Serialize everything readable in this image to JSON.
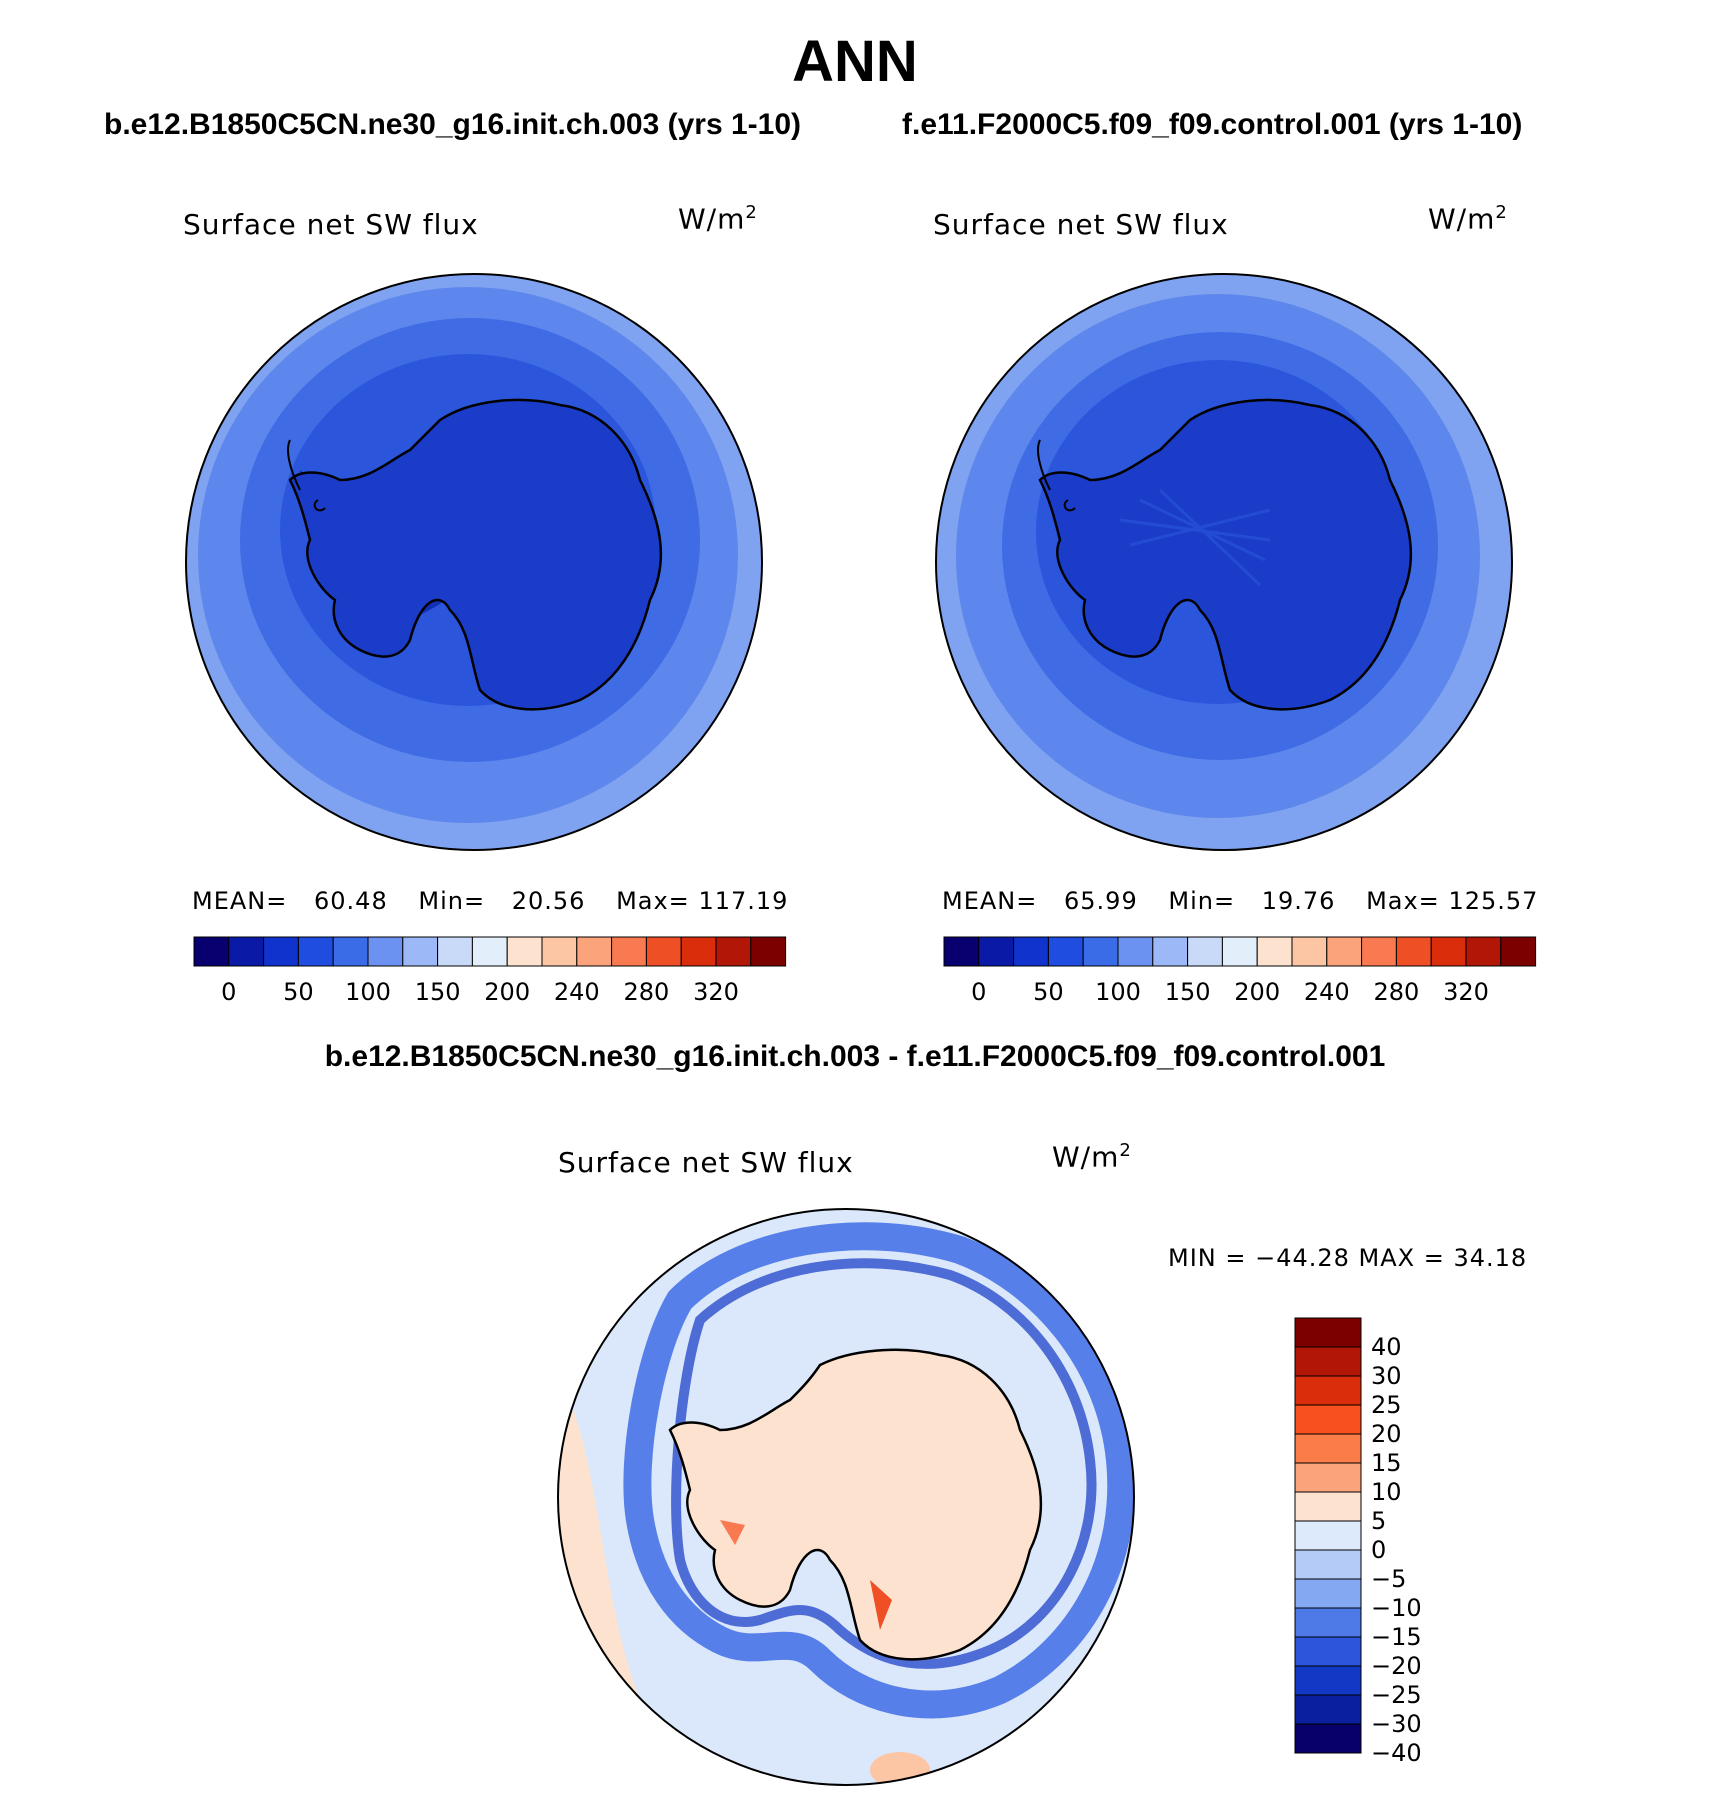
{
  "figure": {
    "title": "ANN",
    "case_left_title": "b.e12.B1850C5CN.ne30_g16.init.ch.003 (yrs 1-10)",
    "case_right_title": "f.e11.F2000C5.f09_f09.control.001 (yrs 1-10)",
    "diff_title": "b.e12.B1850C5CN.ne30_g16.init.ch.003 - f.e11.F2000C5.f09_f09.control.001"
  },
  "panels": [
    {
      "variable": "Surface net SW flux",
      "units_base": "W/m",
      "units_exp": "2",
      "mean_label": "MEAN=",
      "mean": "60.48",
      "min_label": "Min=",
      "min": "20.56",
      "max_label": "Max=",
      "max": "117.19"
    },
    {
      "variable": "Surface net SW flux",
      "units_base": "W/m",
      "units_exp": "2",
      "mean_label": "MEAN=",
      "mean": "65.99",
      "min_label": "Min=",
      "min": "19.76",
      "max_label": "Max=",
      "max": "125.57"
    }
  ],
  "diff_panel": {
    "variable": "Surface net SW flux",
    "units_base": "W/m",
    "units_exp": "2",
    "minmax_text": "MIN = −44.28 MAX =   34.18"
  },
  "colorbar_abs": {
    "colors": [
      "#08006e",
      "#0a1aa6",
      "#0f33cc",
      "#1f4de0",
      "#3a6ce8",
      "#6b92f0",
      "#9cb8f6",
      "#c8daf8",
      "#e2eefa",
      "#fde3cf",
      "#fcc5a4",
      "#fba47c",
      "#f97a50",
      "#ef4f25",
      "#d92d0b",
      "#b21606",
      "#7d0000"
    ],
    "labels": [
      "0",
      "50",
      "100",
      "150",
      "200",
      "240",
      "280",
      "320"
    ]
  },
  "colorbar_diff": {
    "colors": [
      "#7d0000",
      "#b21606",
      "#d92d0b",
      "#f9501f",
      "#fa7c48",
      "#fba47c",
      "#fde3cf",
      "#dceafb",
      "#b4cbf8",
      "#85a8f2",
      "#4d7ae6",
      "#2b56dc",
      "#1338c4",
      "#0a1f9e",
      "#07006b"
    ],
    "labels": [
      "40",
      "30",
      "25",
      "20",
      "15",
      "10",
      "5",
      "0",
      "−5",
      "−10",
      "−15",
      "−20",
      "−25",
      "−30",
      "−40"
    ]
  },
  "map_colors": {
    "outer_ring": "#7fa3f1",
    "ring2": "#5d87ec",
    "ring3": "#3f6ce5",
    "inner": "#2b56dc",
    "antarctica": "#1a3cc8",
    "deep": "#122fb5",
    "diff_bg": "#dbe8fb",
    "diff_land": "#fde3cf",
    "coast": "#000000"
  }
}
